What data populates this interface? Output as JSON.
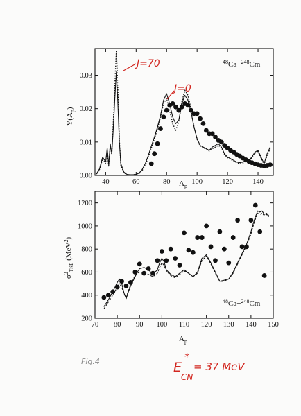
{
  "chart_data": [
    {
      "type": "line",
      "ylabel": "Y(A",
      "ylabel_sub": "p",
      "ylabel_end": ")",
      "xlabel": "A",
      "xlabel_sub": "p",
      "reaction": {
        "pre1": "48",
        "el1": "Ca+",
        "pre2": "248",
        "el2": "Cm"
      },
      "xlim": [
        33,
        150
      ],
      "ylim": [
        0,
        0.038
      ],
      "xticks": [
        40,
        60,
        80,
        100,
        120,
        140
      ],
      "yticks": [
        0.0,
        0.01,
        0.02,
        0.03
      ],
      "ytick_labels": [
        "0.00",
        "0.01",
        "0.02",
        "0.03"
      ],
      "annotations": {
        "j70": "J=70",
        "j0": "J=0"
      },
      "series": [
        {
          "style": "solid",
          "x": [
            34,
            36,
            38,
            40,
            41,
            42,
            43,
            44,
            45,
            46,
            47,
            48,
            49,
            50,
            52,
            54,
            56,
            58,
            60,
            62,
            64,
            66,
            68,
            70,
            72,
            74,
            76,
            78,
            80,
            82,
            84,
            86,
            88,
            90,
            92,
            94,
            96,
            98,
            100,
            102,
            104,
            106,
            108,
            110,
            112,
            114,
            116,
            118,
            120,
            122,
            124,
            126,
            128,
            130,
            132,
            134,
            136,
            138,
            140,
            142,
            144,
            146,
            148
          ],
          "y": [
            0.0005,
            0.002,
            0.0055,
            0.004,
            0.0082,
            0.003,
            0.0095,
            0.0065,
            0.014,
            0.023,
            0.031,
            0.022,
            0.01,
            0.0035,
            0.001,
            0.0003,
            0.0002,
            0.0002,
            0.0003,
            0.0007,
            0.0018,
            0.0035,
            0.006,
            0.0088,
            0.0115,
            0.0145,
            0.018,
            0.0225,
            0.0245,
            0.0215,
            0.0175,
            0.0155,
            0.0165,
            0.0215,
            0.024,
            0.0225,
            0.019,
            0.0145,
            0.011,
            0.009,
            0.0085,
            0.008,
            0.0075,
            0.0085,
            0.009,
            0.0095,
            0.0085,
            0.0065,
            0.0055,
            0.005,
            0.0045,
            0.004,
            0.0038,
            0.004,
            0.0045,
            0.0045,
            0.0055,
            0.007,
            0.0075,
            0.0055,
            0.0035,
            0.0065,
            0.0085
          ]
        },
        {
          "style": "dotted",
          "x": [
            34,
            36,
            38,
            40,
            41,
            42,
            43,
            44,
            45,
            46,
            47,
            48,
            49,
            50,
            52,
            54,
            56,
            58,
            60,
            62,
            64,
            66,
            68,
            70,
            72,
            74,
            76,
            78,
            80,
            82,
            84,
            86,
            88,
            90,
            92,
            94,
            96,
            98,
            100,
            102,
            104,
            106,
            108,
            110,
            112,
            114,
            116,
            118,
            120,
            122,
            124,
            126,
            128,
            130,
            132,
            134,
            136,
            138,
            140,
            142,
            144,
            146,
            148
          ],
          "y": [
            0.0004,
            0.0018,
            0.005,
            0.0035,
            0.0075,
            0.0028,
            0.009,
            0.0062,
            0.016,
            0.027,
            0.0375,
            0.026,
            0.011,
            0.003,
            0.0008,
            0.0002,
            0.0001,
            0.0002,
            0.0003,
            0.0006,
            0.0015,
            0.003,
            0.0055,
            0.0082,
            0.011,
            0.014,
            0.0175,
            0.0215,
            0.023,
            0.0195,
            0.0155,
            0.0135,
            0.016,
            0.022,
            0.0255,
            0.024,
            0.02,
            0.0145,
            0.0108,
            0.0088,
            0.0083,
            0.0078,
            0.0073,
            0.008,
            0.0085,
            0.009,
            0.0082,
            0.0063,
            0.0053,
            0.0048,
            0.0043,
            0.0038,
            0.0035,
            0.0037,
            0.0042,
            0.0043,
            0.0052,
            0.0066,
            0.0072,
            0.0052,
            0.0033,
            0.006,
            0.008
          ]
        },
        {
          "style": "points",
          "x": [
            70,
            72,
            74,
            76,
            78,
            80,
            82,
            84,
            86,
            88,
            90,
            92,
            94,
            96,
            98,
            100,
            102,
            104,
            106,
            108,
            110,
            112,
            114,
            116,
            118,
            120,
            122,
            124,
            126,
            128,
            130,
            132,
            134,
            136,
            138,
            140,
            142,
            144,
            146,
            148
          ],
          "y": [
            0.0035,
            0.0065,
            0.0095,
            0.014,
            0.0175,
            0.0195,
            0.021,
            0.0215,
            0.0205,
            0.0195,
            0.0205,
            0.0215,
            0.021,
            0.0195,
            0.0185,
            0.0185,
            0.017,
            0.0155,
            0.0135,
            0.0125,
            0.0125,
            0.0115,
            0.0105,
            0.01,
            0.009,
            0.0082,
            0.0075,
            0.007,
            0.0063,
            0.0058,
            0.0052,
            0.0047,
            0.0042,
            0.0038,
            0.0035,
            0.0032,
            0.003,
            0.0028,
            0.003,
            0.0032
          ]
        }
      ]
    },
    {
      "type": "line",
      "ylabel": "σ",
      "ylabel_sup": "2",
      "ylabel_sub": "TKE",
      "ylabel_tail": " (MeV",
      "ylabel_tail_sup": "2",
      "ylabel_end": ")",
      "xlabel": "A",
      "xlabel_sub": "p",
      "reaction": {
        "pre1": "48",
        "el1": "Ca+",
        "pre2": "248",
        "el2": "Cm"
      },
      "xlim": [
        70,
        150
      ],
      "ylim": [
        200,
        1300
      ],
      "xticks": [
        70,
        80,
        90,
        100,
        110,
        120,
        130,
        140,
        150
      ],
      "yticks": [
        200,
        400,
        600,
        800,
        1000,
        1200
      ],
      "series": [
        {
          "style": "solid",
          "x": [
            74,
            76,
            78,
            80,
            81,
            82,
            83,
            84,
            85,
            86,
            87,
            88,
            89,
            90,
            92,
            94,
            96,
            98,
            99,
            100,
            101,
            102,
            104,
            106,
            108,
            110,
            112,
            114,
            116,
            118,
            120,
            122,
            124,
            126,
            128,
            130,
            132,
            134,
            136,
            138,
            140,
            141,
            142,
            143,
            144,
            145,
            146,
            147,
            148
          ],
          "y": [
            300,
            360,
            430,
            510,
            540,
            500,
            420,
            370,
            430,
            480,
            520,
            560,
            600,
            630,
            640,
            620,
            580,
            620,
            680,
            720,
            690,
            620,
            580,
            560,
            590,
            620,
            590,
            560,
            600,
            720,
            750,
            680,
            600,
            520,
            530,
            540,
            600,
            680,
            760,
            840,
            950,
            1020,
            1080,
            1130,
            1120,
            1130,
            1100,
            1110,
            1090
          ]
        },
        {
          "style": "dashed",
          "x": [
            74,
            76,
            78,
            80,
            81,
            82,
            83,
            84,
            85,
            86,
            87,
            88,
            89,
            90,
            92,
            94,
            96,
            98,
            99,
            100,
            101,
            102,
            104,
            106,
            108,
            110,
            112,
            114,
            116,
            118,
            120,
            122,
            124,
            126,
            128,
            130,
            132,
            134,
            136,
            138,
            140,
            141,
            142,
            143,
            144,
            145,
            146,
            147,
            148
          ],
          "y": [
            280,
            340,
            400,
            470,
            500,
            470,
            410,
            380,
            440,
            490,
            530,
            570,
            590,
            600,
            600,
            580,
            560,
            590,
            640,
            680,
            660,
            610,
            570,
            550,
            580,
            610,
            590,
            560,
            590,
            700,
            740,
            670,
            590,
            520,
            520,
            540,
            590,
            670,
            750,
            830,
            930,
            1000,
            1060,
            1110,
            1100,
            1110,
            1090,
            1100,
            1080
          ]
        },
        {
          "style": "points",
          "x": [
            74,
            76,
            78,
            80,
            82,
            84,
            86,
            88,
            90,
            92,
            94,
            96,
            98,
            100,
            102,
            104,
            106,
            108,
            110,
            112,
            114,
            116,
            118,
            120,
            122,
            124,
            126,
            128,
            130,
            132,
            134,
            136,
            138,
            140,
            142,
            144,
            146
          ],
          "y": [
            380,
            400,
            430,
            470,
            520,
            480,
            510,
            600,
            670,
            590,
            630,
            590,
            700,
            780,
            700,
            800,
            720,
            660,
            940,
            790,
            770,
            900,
            900,
            1000,
            820,
            700,
            950,
            800,
            680,
            900,
            1050,
            820,
            820,
            1050,
            1180,
            950,
            570
          ]
        }
      ]
    }
  ],
  "handwriting": {
    "fig_label": "Fig.4",
    "energy_main": "E",
    "energy_sup": "*",
    "energy_sub": "CN",
    "energy_value": "= 37 MeV"
  }
}
